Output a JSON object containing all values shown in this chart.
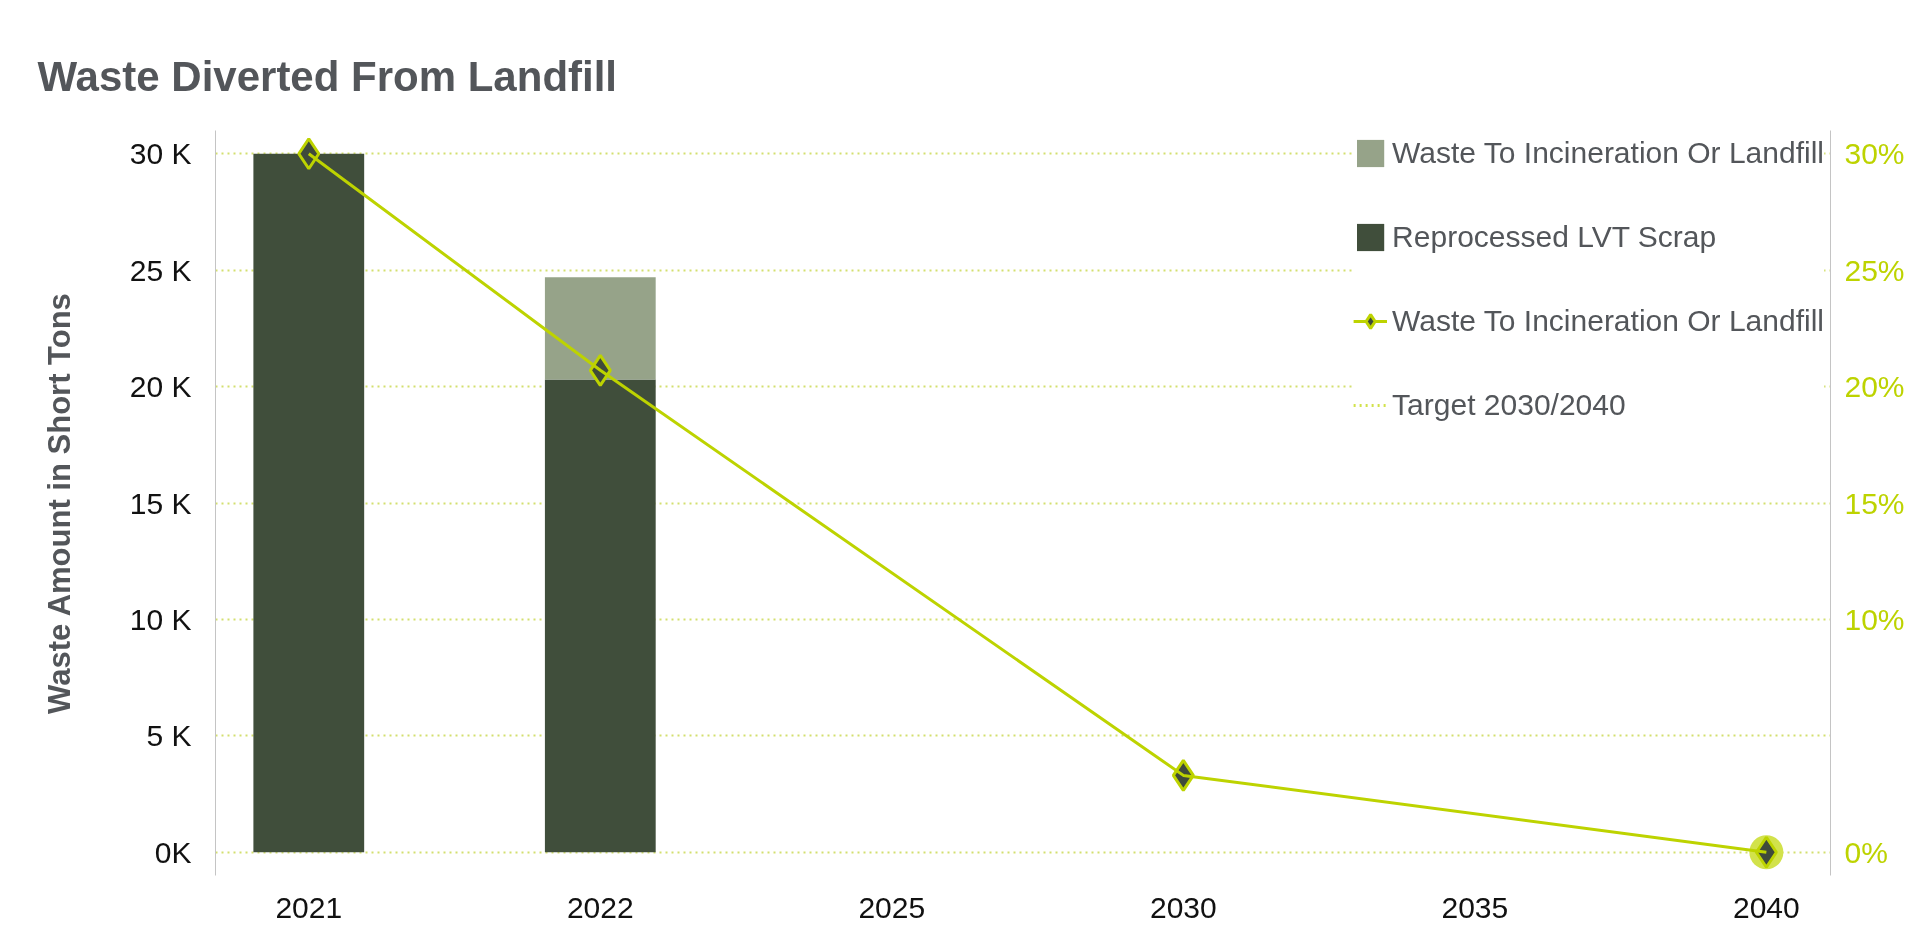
{
  "chart_data": {
    "type": "bar",
    "title": "Waste Diverted From Landfill",
    "ylabel": "Waste Amount in Short Tons",
    "categories": [
      "2021",
      "2022",
      "2025",
      "2030",
      "2035",
      "2040"
    ],
    "stacked": true,
    "series": [
      {
        "name": "Reprocessed LVT Scrap",
        "color": "#404e3b",
        "values": [
          30000,
          20300,
          null,
          null,
          null,
          null
        ]
      },
      {
        "name": "Waste To Incineration Or Landfill",
        "color": "#96a389",
        "values": [
          null,
          4400,
          null,
          null,
          null,
          null
        ]
      },
      {
        "name": "Waste To Incineration Or Landfill",
        "type": "line",
        "axis": "y2",
        "color": "#bdd300",
        "marker": "diamond",
        "values": [
          30,
          20.7,
          null,
          3.3,
          null,
          0
        ]
      },
      {
        "name": "Target 2030/2040",
        "type": "line",
        "axis": "y2",
        "color": "#d2e24b",
        "line_style": "dotted",
        "marker": "circle",
        "values": [
          null,
          null,
          null,
          null,
          null,
          0
        ]
      }
    ],
    "ylim": [
      -1000,
      31000
    ],
    "yticks": [
      {
        "value": 0,
        "label": "0K"
      },
      {
        "value": 5000,
        "label": "5 K"
      },
      {
        "value": 10000,
        "label": "10 K"
      },
      {
        "value": 15000,
        "label": "15 K"
      },
      {
        "value": 20000,
        "label": "20 K"
      },
      {
        "value": 25000,
        "label": "25 K"
      },
      {
        "value": 30000,
        "label": "30 K"
      }
    ],
    "y2lim": [
      -1,
      31
    ],
    "y2ticks": [
      {
        "value": 0,
        "label": "0%"
      },
      {
        "value": 10,
        "label": "10%"
      },
      {
        "value": 15,
        "label": "15%"
      },
      {
        "value": 20,
        "label": "20%"
      },
      {
        "value": 25,
        "label": "25%"
      },
      {
        "value": 30,
        "label": "30%"
      }
    ],
    "grid": "y",
    "legend": "top right"
  }
}
